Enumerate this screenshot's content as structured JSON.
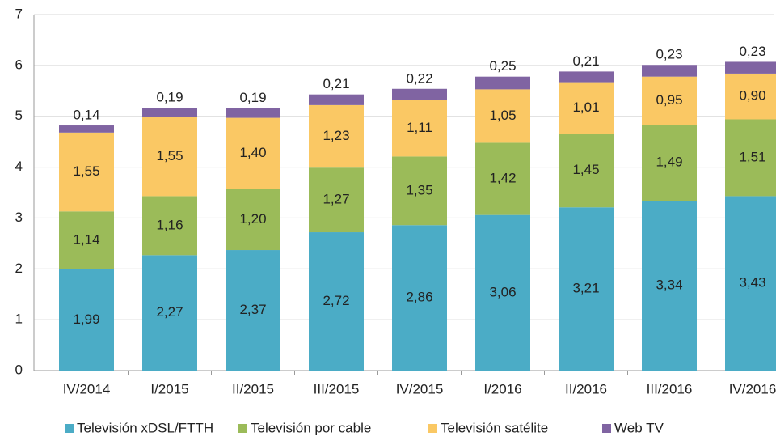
{
  "chart_data": {
    "type": "stacked_bar",
    "categories": [
      "IV/2014",
      "I/2015",
      "II/2015",
      "III/2015",
      "IV/2015",
      "I/2016",
      "II/2016",
      "III/2016",
      "IV/2016"
    ],
    "series": [
      {
        "name": "Televisión xDSL/FTTH",
        "color": "#4bacc6",
        "values": [
          1.99,
          2.27,
          2.37,
          2.72,
          2.86,
          3.06,
          3.21,
          3.34,
          3.43
        ],
        "value_labels": [
          "1,99",
          "2,27",
          "2,37",
          "2,72",
          "2,86",
          "3,06",
          "3,21",
          "3,34",
          "3,43"
        ]
      },
      {
        "name": "Televisión por cable",
        "color": "#9bbb59",
        "values": [
          1.14,
          1.16,
          1.2,
          1.27,
          1.35,
          1.42,
          1.45,
          1.49,
          1.51
        ],
        "value_labels": [
          "1,14",
          "1,16",
          "1,20",
          "1,27",
          "1,35",
          "1,42",
          "1,45",
          "1,49",
          "1,51"
        ]
      },
      {
        "name": "Televisión satélite",
        "color": "#fac864",
        "values": [
          1.55,
          1.55,
          1.4,
          1.23,
          1.11,
          1.05,
          1.01,
          0.95,
          0.9
        ],
        "value_labels": [
          "1,55",
          "1,55",
          "1,40",
          "1,23",
          "1,11",
          "1,05",
          "1,01",
          "0,95",
          "0,90"
        ]
      },
      {
        "name": "Web TV",
        "color": "#8064a2",
        "values": [
          0.14,
          0.19,
          0.19,
          0.21,
          0.22,
          0.25,
          0.21,
          0.23,
          0.23
        ],
        "value_labels": [
          "0,14",
          "0,19",
          "0,19",
          "0,21",
          "0,22",
          "0,25",
          "0,21",
          "0,23",
          "0,23"
        ]
      }
    ],
    "ylim": [
      0,
      7
    ],
    "yticks": [
      0,
      1,
      2,
      3,
      4,
      5,
      6,
      7
    ],
    "grid": true,
    "legend": "bottom"
  }
}
